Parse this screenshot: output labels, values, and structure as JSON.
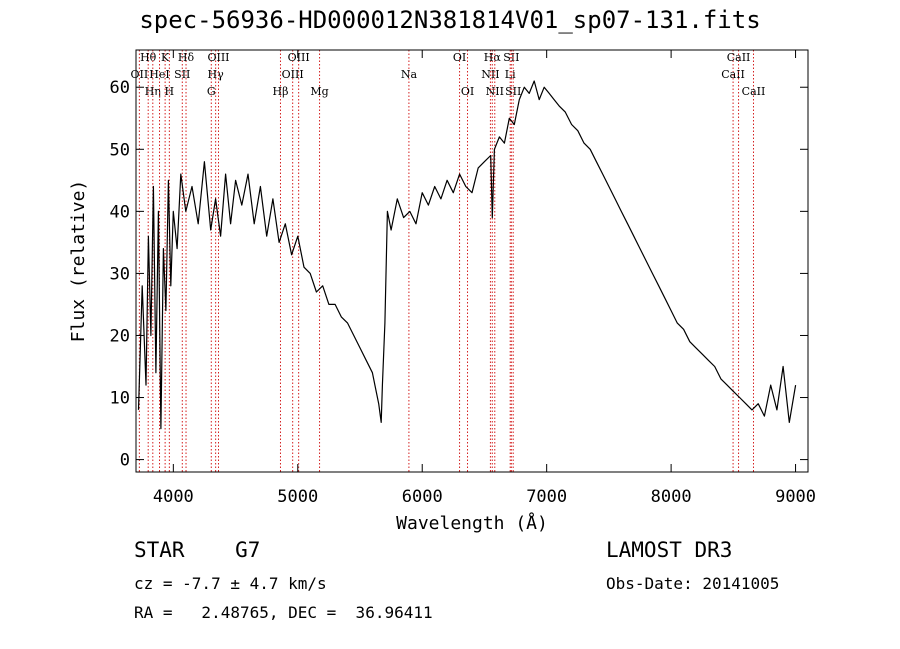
{
  "chart_data": {
    "type": "line",
    "title": "spec-56936-HD000012N381814V01_sp07-131.fits",
    "xlabel": "Wavelength (Å)",
    "ylabel": "Flux (relative)",
    "xlim": [
      3700,
      9100
    ],
    "ylim": [
      -2,
      66
    ],
    "x_ticks": [
      4000,
      5000,
      6000,
      7000,
      8000,
      9000
    ],
    "x_tick_labels": [
      "4000",
      "5000",
      "6000",
      "7000",
      "8000",
      "9000"
    ],
    "y_ticks": [
      0,
      10,
      20,
      30,
      40,
      50,
      60
    ],
    "y_tick_labels": [
      "0",
      "10",
      "20",
      "30",
      "40",
      "50",
      "60"
    ],
    "grid": false,
    "series": [
      {
        "x": [
          3720,
          3750,
          3780,
          3800,
          3820,
          3840,
          3860,
          3880,
          3900,
          3920,
          3940,
          3960,
          3980,
          4000,
          4030,
          4060,
          4100,
          4150,
          4200,
          4250,
          4300,
          4340,
          4380,
          4420,
          4460,
          4500,
          4550,
          4600,
          4650,
          4700,
          4750,
          4800,
          4850,
          4900,
          4950,
          5000,
          5050,
          5100,
          5150,
          5200,
          5250,
          5300,
          5350,
          5400,
          5450,
          5500,
          5550,
          5600,
          5620,
          5650,
          5670,
          5680,
          5700,
          5720,
          5750,
          5800,
          5850,
          5900,
          5950,
          6000,
          6050,
          6100,
          6150,
          6200,
          6250,
          6300,
          6350,
          6400,
          6450,
          6500,
          6550,
          6563,
          6580,
          6620,
          6660,
          6700,
          6740,
          6780,
          6820,
          6860,
          6900,
          6940,
          6980,
          7020,
          7060,
          7100,
          7150,
          7200,
          7250,
          7300,
          7350,
          7400,
          7450,
          7500,
          7550,
          7600,
          7650,
          7700,
          7750,
          7800,
          7850,
          7900,
          7950,
          8000,
          8050,
          8100,
          8150,
          8200,
          8250,
          8300,
          8350,
          8400,
          8450,
          8500,
          8550,
          8600,
          8650,
          8700,
          8750,
          8800,
          8850,
          8900,
          8950,
          9000
        ],
        "values": [
          8,
          28,
          12,
          36,
          20,
          44,
          14,
          40,
          5,
          34,
          24,
          45,
          28,
          40,
          34,
          46,
          40,
          44,
          38,
          48,
          37,
          42,
          36,
          46,
          38,
          45,
          41,
          46,
          38,
          44,
          36,
          42,
          35,
          38,
          33,
          36,
          31,
          30,
          27,
          28,
          25,
          25,
          23,
          22,
          20,
          18,
          16,
          14,
          12,
          9,
          6,
          12,
          22,
          40,
          37,
          42,
          39,
          40,
          38,
          43,
          41,
          44,
          42,
          45,
          43,
          46,
          44,
          43,
          47,
          48,
          49,
          39,
          50,
          52,
          51,
          55,
          54,
          58,
          60,
          59,
          61,
          58,
          60,
          59,
          58,
          57,
          56,
          54,
          53,
          51,
          50,
          48,
          46,
          44,
          42,
          40,
          38,
          36,
          34,
          32,
          30,
          28,
          26,
          24,
          22,
          21,
          19,
          18,
          17,
          16,
          15,
          13,
          12,
          11,
          10,
          9,
          8,
          9,
          7,
          12,
          8,
          15,
          6,
          12
        ]
      }
    ],
    "lines": [
      {
        "label": "OII",
        "x": 3727,
        "row": 2
      },
      {
        "label": "Hθ",
        "x": 3798,
        "row": 1
      },
      {
        "label": "Hη",
        "x": 3835,
        "row": 3
      },
      {
        "label": "HeI",
        "x": 3889,
        "row": 2
      },
      {
        "label": "K",
        "x": 3934,
        "row": 1
      },
      {
        "label": "H",
        "x": 3968,
        "row": 3
      },
      {
        "label": "SII",
        "x": 4072,
        "row": 2
      },
      {
        "label": "Hδ",
        "x": 4102,
        "row": 1
      },
      {
        "label": "G",
        "x": 4305,
        "row": 3
      },
      {
        "label": "Hγ",
        "x": 4340,
        "row": 2
      },
      {
        "label": "OIII",
        "x": 4363,
        "row": 1
      },
      {
        "label": "Hβ",
        "x": 4861,
        "row": 3
      },
      {
        "label": "OIII",
        "x": 4959,
        "row": 2
      },
      {
        "label": "OIII",
        "x": 5007,
        "row": 1
      },
      {
        "label": "Mg",
        "x": 5175,
        "row": 3
      },
      {
        "label": "Na",
        "x": 5893,
        "row": 2
      },
      {
        "label": "OI",
        "x": 6300,
        "row": 1
      },
      {
        "label": "OI",
        "x": 6364,
        "row": 3
      },
      {
        "label": "NII",
        "x": 6548,
        "row": 2
      },
      {
        "label": "Hα",
        "x": 6563,
        "row": 1
      },
      {
        "label": "NII",
        "x": 6583,
        "row": 3
      },
      {
        "label": "Li",
        "x": 6707,
        "row": 2
      },
      {
        "label": "SII",
        "x": 6716,
        "row": 1
      },
      {
        "label": "SII",
        "x": 6731,
        "row": 3
      },
      {
        "label": "CaII",
        "x": 8498,
        "row": 2
      },
      {
        "label": "CaII",
        "x": 8542,
        "row": 1
      },
      {
        "label": "CaII",
        "x": 8662,
        "row": 3
      }
    ]
  },
  "info": {
    "class": "STAR    G7",
    "cz": "cz = -7.7 ± 4.7 km/s",
    "radec": "RA =   2.48765, DEC =  36.96411",
    "survey": "LAMOST DR3",
    "obs_date": "Obs-Date: 20141005"
  }
}
